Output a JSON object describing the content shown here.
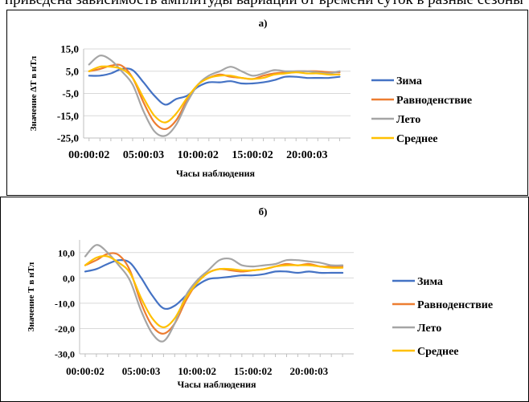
{
  "caption_fragment": "приведена зависимость амплитуды вариаций от времени суток в разные сезоны",
  "colors": {
    "winter": "#4472C4",
    "equinox": "#ED7D31",
    "summer": "#A5A5A5",
    "average": "#FFC000",
    "grid": "#D9D9D9",
    "axis": "#BFBFBF"
  },
  "chart_data": [
    {
      "type": "line",
      "title": "а)",
      "ylabel": "Значение ΔT в нТл",
      "xlabel": "Часы наблюдения",
      "x_tick_labels": [
        "00:00:02",
        "05:00:03",
        "10:00:02",
        "15:00:02",
        "20:00:03"
      ],
      "x_tick_hours": [
        0,
        5,
        10,
        15,
        20
      ],
      "xlim": [
        -0.5,
        24
      ],
      "y_tick_labels": [
        "15,0",
        "5,0",
        "-5,0",
        "-15,0",
        "-25,0"
      ],
      "y_tick_values": [
        15,
        5,
        -5,
        -15,
        -25
      ],
      "ylim": [
        -25,
        15
      ],
      "grid": "horizontal",
      "legend_position": "right",
      "x": [
        0,
        1,
        2,
        3,
        4,
        5,
        6,
        7,
        8,
        9,
        10,
        11,
        12,
        13,
        14,
        15,
        16,
        17,
        18,
        19,
        20,
        21,
        22,
        23
      ],
      "series": [
        {
          "name": "Зима",
          "color_key": "winter",
          "values": [
            3.0,
            3.0,
            4.0,
            6.0,
            5.5,
            0.0,
            -6.0,
            -10.0,
            -7.5,
            -6.0,
            -2.0,
            0.0,
            0.0,
            0.5,
            -0.5,
            -0.5,
            0.0,
            1.0,
            2.5,
            2.5,
            2.0,
            2.0,
            2.0,
            2.5
          ]
        },
        {
          "name": "Равноденствие",
          "color_key": "equinox",
          "values": [
            5.0,
            6.0,
            7.5,
            7.5,
            2.0,
            -9.0,
            -18.0,
            -21.0,
            -17.0,
            -8.0,
            -1.0,
            2.0,
            3.5,
            2.5,
            2.0,
            1.5,
            3.0,
            4.0,
            4.5,
            5.0,
            5.0,
            5.0,
            4.5,
            4.5
          ]
        },
        {
          "name": "Лето",
          "color_key": "summer",
          "values": [
            8.0,
            12.0,
            10.0,
            5.0,
            -1.0,
            -13.0,
            -22.0,
            -24.0,
            -19.0,
            -9.0,
            -1.0,
            3.0,
            5.0,
            7.0,
            5.0,
            3.0,
            4.0,
            5.5,
            5.0,
            5.0,
            5.0,
            4.5,
            4.0,
            5.0
          ]
        },
        {
          "name": "Среднее",
          "color_key": "average",
          "values": [
            5.0,
            7.0,
            7.0,
            6.0,
            2.0,
            -7.0,
            -15.0,
            -18.0,
            -14.0,
            -7.0,
            -1.0,
            2.0,
            3.0,
            3.0,
            2.0,
            1.5,
            2.0,
            3.5,
            4.0,
            4.5,
            4.0,
            4.0,
            3.5,
            3.5
          ]
        }
      ]
    },
    {
      "type": "line",
      "title": "б)",
      "ylabel": "Значение Т в нТл",
      "xlabel": "Часы наблюдения",
      "x_tick_labels": [
        "00:00:02",
        "05:00:03",
        "10:00:02",
        "15:00:02",
        "20:00:03"
      ],
      "x_tick_hours": [
        0,
        5,
        10,
        15,
        20
      ],
      "xlim": [
        -0.5,
        24
      ],
      "y_tick_labels": [
        "10,0",
        "0,0",
        "-10,0",
        "-20,0",
        "-30,0"
      ],
      "y_tick_values": [
        10,
        0,
        -10,
        -20,
        -30
      ],
      "ylim": [
        -30,
        15
      ],
      "grid": "horizontal",
      "legend_position": "right",
      "x": [
        0,
        1,
        2,
        3,
        4,
        5,
        6,
        7,
        8,
        9,
        10,
        11,
        12,
        13,
        14,
        15,
        16,
        17,
        18,
        19,
        20,
        21,
        22,
        23
      ],
      "series": [
        {
          "name": "Зима",
          "color_key": "winter",
          "values": [
            2.5,
            3.5,
            5.5,
            7.0,
            6.0,
            0.0,
            -7.0,
            -12.0,
            -11.0,
            -7.0,
            -3.0,
            -0.5,
            0.0,
            0.5,
            1.0,
            1.0,
            1.5,
            2.5,
            2.5,
            2.0,
            2.5,
            2.0,
            2.0,
            2.0
          ]
        },
        {
          "name": "Равноденствие",
          "color_key": "equinox",
          "values": [
            5.0,
            7.0,
            9.5,
            9.0,
            3.0,
            -10.0,
            -19.0,
            -22.0,
            -18.0,
            -9.0,
            -2.0,
            2.0,
            3.5,
            3.0,
            2.5,
            3.0,
            3.5,
            4.5,
            5.5,
            5.0,
            5.5,
            4.5,
            4.5,
            4.5
          ]
        },
        {
          "name": "Лето",
          "color_key": "summer",
          "values": [
            8.5,
            13.0,
            10.0,
            5.0,
            -1.0,
            -13.0,
            -22.0,
            -25.0,
            -18.0,
            -7.0,
            -1.0,
            3.0,
            7.0,
            7.5,
            5.0,
            4.5,
            5.0,
            5.5,
            7.0,
            7.0,
            6.5,
            6.0,
            5.0,
            5.0
          ]
        },
        {
          "name": "Среднее",
          "color_key": "average",
          "values": [
            5.0,
            8.0,
            8.5,
            6.0,
            2.0,
            -8.0,
            -16.0,
            -19.5,
            -16.0,
            -8.0,
            -2.0,
            2.0,
            3.5,
            3.5,
            3.0,
            3.0,
            3.5,
            4.5,
            5.0,
            5.0,
            5.0,
            4.5,
            4.0,
            4.0
          ]
        }
      ]
    }
  ]
}
